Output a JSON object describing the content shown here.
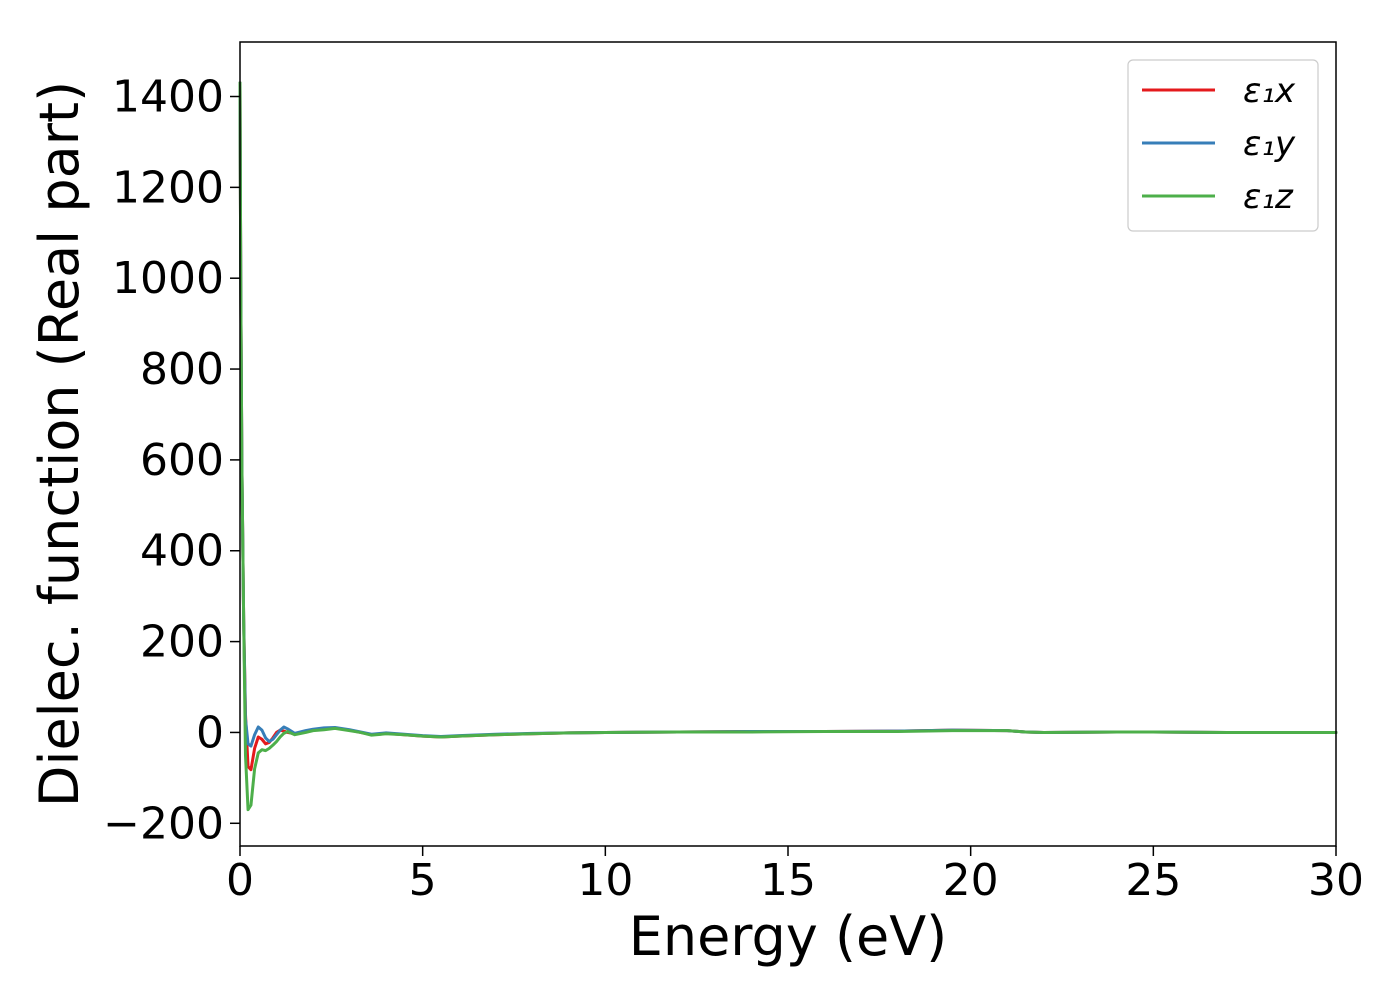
{
  "chart_data": {
    "type": "line",
    "title": "",
    "xlabel": "Energy (eV)",
    "ylabel": "Dielec. function (Real part)",
    "xlim": [
      0,
      30
    ],
    "ylim": [
      -250,
      1520
    ],
    "xticks": [
      0,
      5,
      10,
      15,
      20,
      25,
      30
    ],
    "xtick_labels": [
      "0",
      "5",
      "10",
      "15",
      "20",
      "25",
      "30"
    ],
    "yticks": [
      -200,
      0,
      200,
      400,
      600,
      800,
      1000,
      1200,
      1400
    ],
    "ytick_labels": [
      "−200",
      "0",
      "200",
      "400",
      "600",
      "800",
      "1000",
      "1200",
      "1400"
    ],
    "grid": false,
    "legend_position": "top-right",
    "series": [
      {
        "name": "ε₁x",
        "color": "#e41a1c",
        "x": [
          0.0,
          0.02,
          0.05,
          0.1,
          0.15,
          0.22,
          0.3,
          0.4,
          0.5,
          0.6,
          0.7,
          0.8,
          0.9,
          1.0,
          1.1,
          1.2,
          1.3,
          1.5,
          1.8,
          2.0,
          2.3,
          2.6,
          3.0,
          3.3,
          3.6,
          4.0,
          4.5,
          5.0,
          5.5,
          6.0,
          7.0,
          8.0,
          9.0,
          10.0,
          12.0,
          14.0,
          16.0,
          18.0,
          19.5,
          21.0,
          21.5,
          22.0,
          24.0,
          25.0,
          27.0,
          30.0
        ],
        "y": [
          1430,
          1000,
          600,
          250,
          40,
          -75,
          -82,
          -35,
          -10,
          -15,
          -25,
          -22,
          -12,
          0,
          5,
          3,
          0,
          -3,
          2,
          5,
          8,
          10,
          5,
          0,
          -5,
          -2,
          -5,
          -8,
          -10,
          -8,
          -5,
          -3,
          -1,
          0,
          1,
          2,
          2,
          3,
          5,
          4,
          1,
          0,
          1,
          1,
          0,
          0
        ]
      },
      {
        "name": "ε₁y",
        "color": "#377eb8",
        "x": [
          0.0,
          0.02,
          0.05,
          0.1,
          0.15,
          0.22,
          0.3,
          0.4,
          0.5,
          0.6,
          0.7,
          0.8,
          0.9,
          1.0,
          1.1,
          1.2,
          1.3,
          1.5,
          1.8,
          2.0,
          2.3,
          2.6,
          3.0,
          3.3,
          3.6,
          4.0,
          4.5,
          5.0,
          5.5,
          6.0,
          7.0,
          8.0,
          9.0,
          10.0,
          12.0,
          14.0,
          16.0,
          18.0,
          19.5,
          21.0,
          21.5,
          22.0,
          24.0,
          25.0,
          27.0,
          30.0
        ],
        "y": [
          1430,
          1000,
          600,
          250,
          30,
          -25,
          -30,
          -5,
          12,
          5,
          -12,
          -20,
          -15,
          -5,
          5,
          12,
          8,
          -2,
          4,
          7,
          10,
          11,
          6,
          1,
          -4,
          -1,
          -4,
          -7,
          -9,
          -7,
          -4,
          -2,
          -1,
          0,
          1,
          2,
          2,
          3,
          5,
          4,
          1,
          0,
          1,
          1,
          0,
          0
        ]
      },
      {
        "name": "ε₁z",
        "color": "#4daf4a",
        "x": [
          0.0,
          0.02,
          0.05,
          0.1,
          0.15,
          0.22,
          0.3,
          0.4,
          0.5,
          0.6,
          0.7,
          0.8,
          0.9,
          1.0,
          1.1,
          1.2,
          1.3,
          1.5,
          1.8,
          2.0,
          2.3,
          2.6,
          3.0,
          3.3,
          3.6,
          4.0,
          4.5,
          5.0,
          5.5,
          6.0,
          7.0,
          8.0,
          9.0,
          10.0,
          12.0,
          14.0,
          16.0,
          18.0,
          19.5,
          21.0,
          21.5,
          22.0,
          24.0,
          25.0,
          27.0,
          30.0
        ],
        "y": [
          1430,
          1000,
          600,
          250,
          -50,
          -170,
          -160,
          -80,
          -45,
          -38,
          -40,
          -35,
          -28,
          -20,
          -10,
          -2,
          2,
          -5,
          0,
          4,
          6,
          9,
          4,
          0,
          -6,
          -3,
          -5,
          -8,
          -10,
          -8,
          -5,
          -3,
          -1,
          0,
          1,
          1,
          2,
          2,
          4,
          4,
          1,
          0,
          1,
          1,
          0,
          0
        ]
      }
    ]
  }
}
